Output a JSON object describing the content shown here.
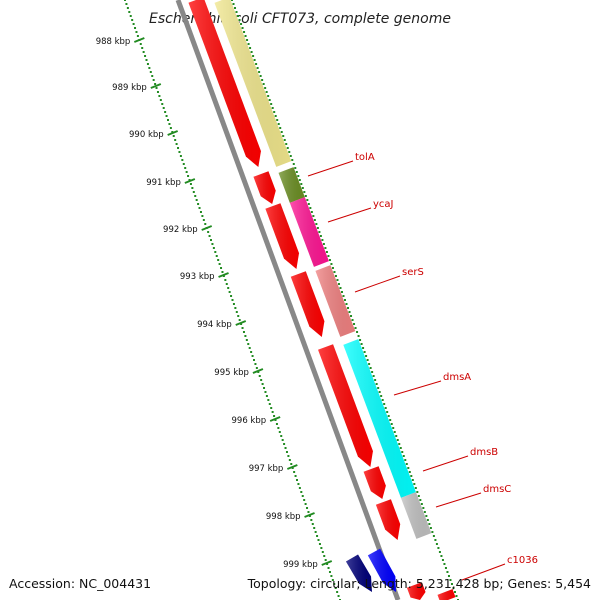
{
  "title": "Escherichia coli CFT073, complete genome",
  "accession_label": "Accession: NC_004431",
  "stats_label": "Topology: circular; Length: 5,231,428 bp; Genes: 5,454",
  "colors": {
    "tick": "#228b22",
    "backbone": "#888888",
    "gene_label": "#cc0000",
    "forward_cds": "#ff0000",
    "orf_dark": "#00007a",
    "orf_blue": "#0000ff"
  },
  "ticks": [
    "988 kbp",
    "989 kbp",
    "990 kbp",
    "991 kbp",
    "992 kbp",
    "993 kbp",
    "994 kbp",
    "995 kbp",
    "996 kbp",
    "997 kbp",
    "998 kbp",
    "999 kbp"
  ],
  "genes": [
    {
      "name": "tolA",
      "color": "#f0e68c"
    },
    {
      "name": "ycaJ",
      "color": "#6b8e23"
    },
    {
      "name": "serS",
      "color": "#ff1493"
    },
    {
      "name": "dmsA",
      "color": "#f08080"
    },
    {
      "name": "dmsB",
      "color": "#00ffff"
    },
    {
      "name": "dmsC",
      "color": "#c0c0c0"
    },
    {
      "name": "c1036",
      "color": "#ff0000"
    }
  ]
}
